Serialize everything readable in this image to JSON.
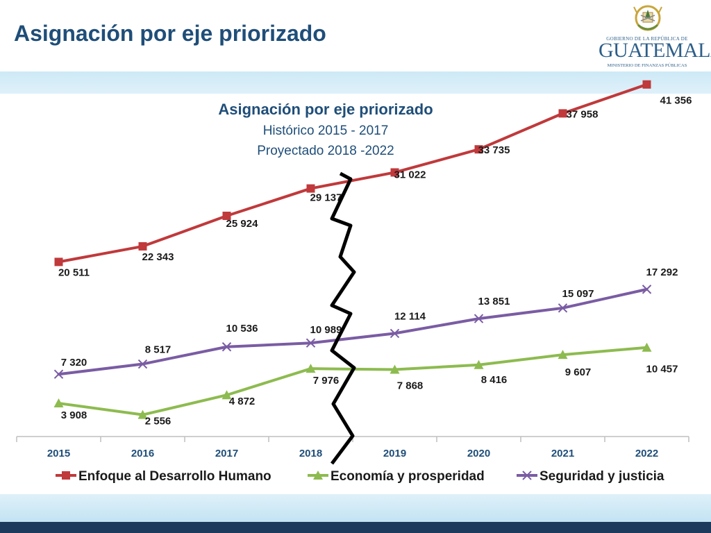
{
  "slide": {
    "title": "Asignación por eje priorizado"
  },
  "logo": {
    "line1": "GOBIERNO DE LA REPÚBLICA DE",
    "line2": "GUATEMALA",
    "line3": "MINISTERIO DE FINANZAS PÚBLICAS"
  },
  "colors": {
    "title": "#1f4e79",
    "series_red": "#c0393b",
    "series_green": "#8dbb4f",
    "series_purple": "#7a5ca3",
    "axis_ticks": "#1f4e79",
    "band": "#cde9f6",
    "footer": "#1b3a5c"
  },
  "chart_data": {
    "type": "line",
    "title": "Asignación por eje priorizado",
    "subtitle": [
      "Histórico 2015 - 2017",
      "Proyectado 2018 -2022"
    ],
    "x": [
      "2015",
      "2016",
      "2017",
      "2018",
      "2019",
      "2020",
      "2021",
      "2022"
    ],
    "series": [
      {
        "name": "Enfoque al Desarrollo Humano",
        "marker": "square",
        "color": "#c0393b",
        "values": [
          20511,
          22343,
          25924,
          29137,
          31022,
          33735,
          37958,
          41356
        ],
        "labels": [
          "20 511",
          "22 343",
          "25 924",
          "29 137",
          "31 022",
          "33 735",
          "37 958",
          "41 356"
        ]
      },
      {
        "name": "Economía y prosperidad",
        "marker": "triangle",
        "color": "#8dbb4f",
        "values": [
          3908,
          2556,
          4872,
          7976,
          7868,
          8416,
          9607,
          10457
        ],
        "labels": [
          "3 908",
          "2 556",
          "4 872",
          "7 976",
          "7 868",
          "8 416",
          "9 607",
          "10 457"
        ]
      },
      {
        "name": "Seguridad y justicia",
        "marker": "x",
        "color": "#7a5ca3",
        "values": [
          7320,
          8517,
          10536,
          10989,
          12114,
          13851,
          15097,
          17292
        ],
        "labels": [
          "7 320",
          "8 517",
          "10 536",
          "10 989",
          "12 114",
          "13 851",
          "15 097",
          "17 292"
        ]
      }
    ],
    "ylim": [
      0,
      45000
    ],
    "grid": false,
    "legend": "bottom",
    "annotation": "zigzag separator between 2018 and 2019 marking historic vs projected"
  }
}
